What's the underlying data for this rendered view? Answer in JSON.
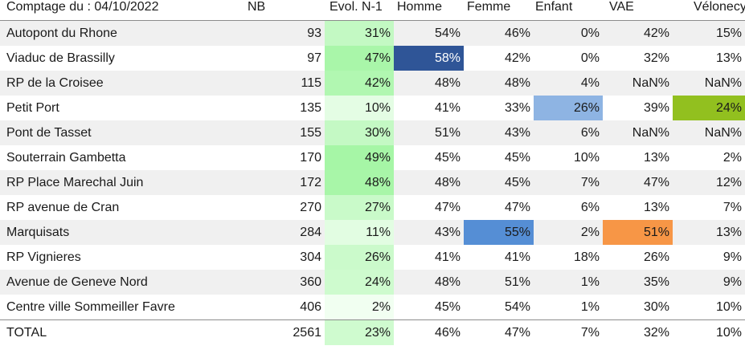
{
  "header": {
    "title": "Comptage du : 04/10/2022",
    "columns": [
      "NB",
      "Evol. N-1",
      "Homme",
      "Femme",
      "Enfant",
      "VAE",
      "Vélonecy"
    ]
  },
  "rows": [
    {
      "name": "Autopont du Rhone",
      "nb": "93",
      "evol": "31%",
      "evol_level": 0.31,
      "homme": "54%",
      "femme": "46%",
      "enfant": "0%",
      "vae": "42%",
      "velonecy": "15%"
    },
    {
      "name": "Viaduc de Brassilly",
      "nb": "97",
      "evol": "47%",
      "evol_level": 0.47,
      "homme": "58%",
      "femme": "42%",
      "enfant": "0%",
      "vae": "32%",
      "velonecy": "13%"
    },
    {
      "name": "RP de la Croisee",
      "nb": "115",
      "evol": "42%",
      "evol_level": 0.42,
      "homme": "48%",
      "femme": "48%",
      "enfant": "4%",
      "vae": "NaN%",
      "velonecy": "NaN%"
    },
    {
      "name": "Petit Port",
      "nb": "135",
      "evol": "10%",
      "evol_level": 0.1,
      "homme": "41%",
      "femme": "33%",
      "enfant": "26%",
      "vae": "39%",
      "velonecy": "24%"
    },
    {
      "name": "Pont de Tasset",
      "nb": "155",
      "evol": "30%",
      "evol_level": 0.3,
      "homme": "51%",
      "femme": "43%",
      "enfant": "6%",
      "vae": "NaN%",
      "velonecy": "NaN%"
    },
    {
      "name": "Souterrain Gambetta",
      "nb": "170",
      "evol": "49%",
      "evol_level": 0.49,
      "homme": "45%",
      "femme": "45%",
      "enfant": "10%",
      "vae": "13%",
      "velonecy": "2%"
    },
    {
      "name": "RP Place Marechal Juin",
      "nb": "172",
      "evol": "48%",
      "evol_level": 0.48,
      "homme": "48%",
      "femme": "45%",
      "enfant": "7%",
      "vae": "47%",
      "velonecy": "12%"
    },
    {
      "name": "RP avenue de Cran",
      "nb": "270",
      "evol": "27%",
      "evol_level": 0.27,
      "homme": "47%",
      "femme": "47%",
      "enfant": "6%",
      "vae": "13%",
      "velonecy": "7%"
    },
    {
      "name": "Marquisats",
      "nb": "284",
      "evol": "11%",
      "evol_level": 0.11,
      "homme": "43%",
      "femme": "55%",
      "enfant": "2%",
      "vae": "51%",
      "velonecy": "13%"
    },
    {
      "name": "RP Vignieres",
      "nb": "304",
      "evol": "26%",
      "evol_level": 0.26,
      "homme": "41%",
      "femme": "41%",
      "enfant": "18%",
      "vae": "26%",
      "velonecy": "9%"
    },
    {
      "name": "Avenue de Geneve Nord",
      "nb": "360",
      "evol": "24%",
      "evol_level": 0.24,
      "homme": "48%",
      "femme": "51%",
      "enfant": "1%",
      "vae": "35%",
      "velonecy": "9%"
    },
    {
      "name": "Centre ville Sommeiller Favre",
      "nb": "406",
      "evol": "2%",
      "evol_level": 0.02,
      "homme": "45%",
      "femme": "54%",
      "enfant": "1%",
      "vae": "30%",
      "velonecy": "10%"
    }
  ],
  "total": {
    "name": "TOTAL",
    "nb": "2561",
    "evol": "23%",
    "evol_level": 0.23,
    "homme": "46%",
    "femme": "47%",
    "enfant": "7%",
    "vae": "32%",
    "velonecy": "10%"
  },
  "highlights": [
    {
      "row": 1,
      "col": "homme",
      "color": "#2f5597",
      "text_color": "#ffffff"
    },
    {
      "row": 3,
      "col": "enfant",
      "color": "#8eb4e3"
    },
    {
      "row": 3,
      "col": "velonecy",
      "color": "#92c01f"
    },
    {
      "row": 8,
      "col": "femme",
      "color": "#558ed5"
    },
    {
      "row": 8,
      "col": "vae",
      "color": "#f79646"
    }
  ],
  "colors": {
    "evol_scale_low": "#f4fff4",
    "evol_scale_high": "#a6f6a6",
    "band": "#f0f0f0",
    "rule": "#8c8c8c"
  }
}
